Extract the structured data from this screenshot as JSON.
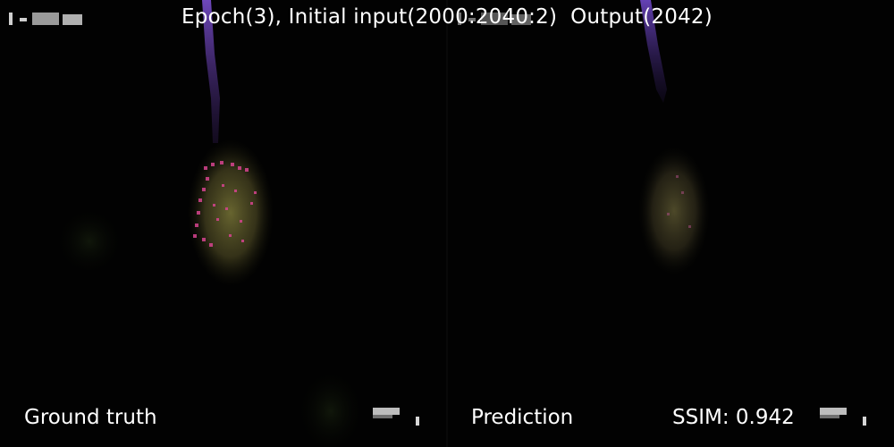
{
  "title": "Epoch(3), Initial input(2000:2040:2)  Output(2042)",
  "left_label": "Ground truth",
  "right_label": "Prediction",
  "ssim_label": "SSIM: 0.942",
  "colors": {
    "background": "#000000",
    "plume": "#6a3fb0",
    "blob": "#5c5a2a",
    "speckle": "#d6448f",
    "text": "#ffffff"
  }
}
